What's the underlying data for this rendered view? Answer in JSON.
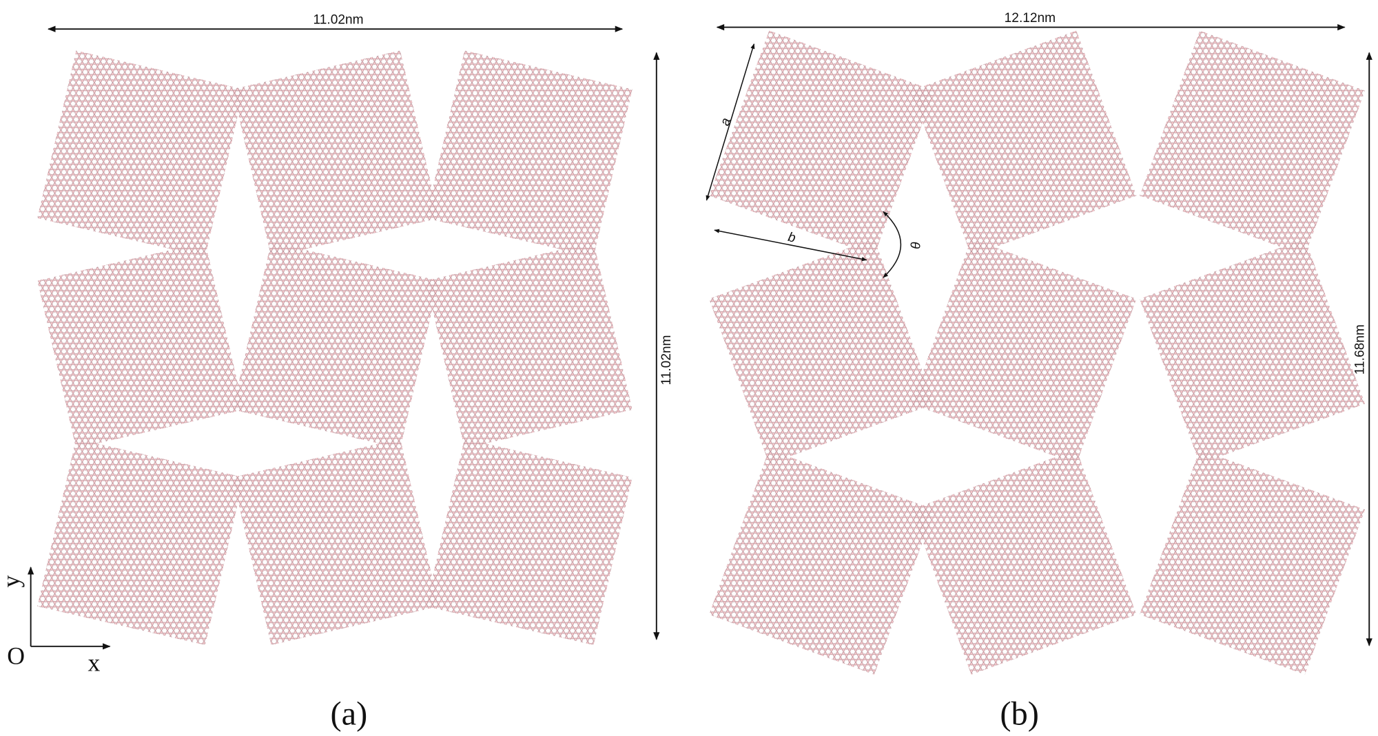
{
  "panels": [
    {
      "caption": "(a)",
      "width_label": "11.02nm",
      "height_label": "11.02nm",
      "axes": {
        "origin": "O",
        "x": "x",
        "y": "y"
      }
    },
    {
      "caption": "(b)",
      "width_label": "12.12nm",
      "height_label": "11.68nm",
      "annotations": {
        "a": "a",
        "b": "b",
        "theta": "θ"
      }
    }
  ],
  "colors": {
    "atom": "#f2c6ca",
    "atom_edge": "#a88088",
    "bond": "#c79aa0",
    "arrow": "#111111"
  }
}
